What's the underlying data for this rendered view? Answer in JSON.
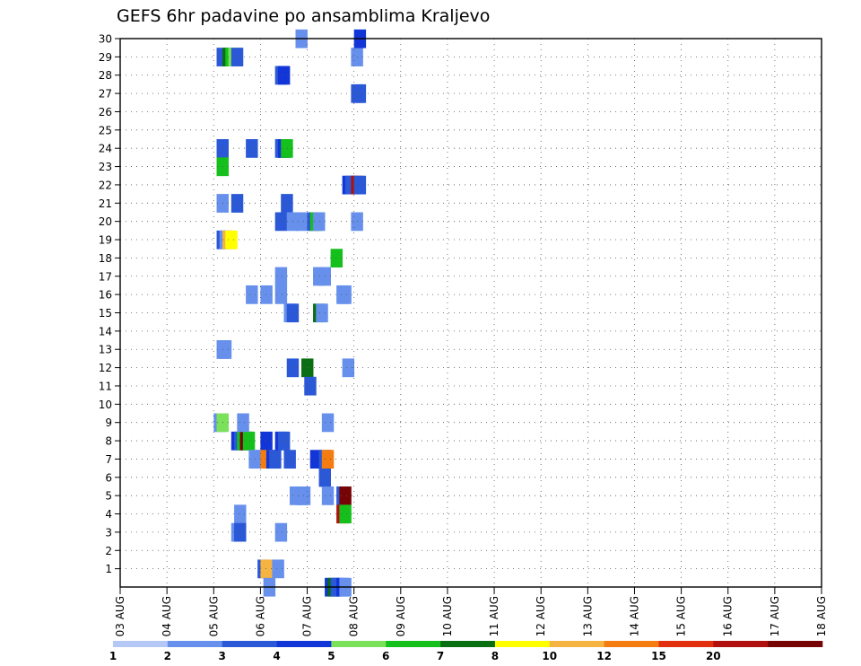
{
  "chart_data": {
    "type": "heatmap",
    "title": "GEFS 6hr padavine po ansamblima Kraljevo",
    "xlabel": "",
    "ylabel": "",
    "x_tick_labels": [
      "03 AUG",
      "04 AUG",
      "05 AUG",
      "06 AUG",
      "07 AUG",
      "08 AUG",
      "09 AUG",
      "10 AUG",
      "11 AUG",
      "12 AUG",
      "13 AUG",
      "14 AUG",
      "15 AUG",
      "16 AUG",
      "17 AUG",
      "18 AUG"
    ],
    "xlim_days": [
      0,
      15
    ],
    "time_step_hours": 6,
    "y_tick_labels": [
      "1",
      "2",
      "3",
      "4",
      "5",
      "6",
      "7",
      "8",
      "9",
      "10",
      "11",
      "12",
      "13",
      "14",
      "15",
      "16",
      "17",
      "18",
      "19",
      "20",
      "21",
      "22",
      "23",
      "24",
      "25",
      "26",
      "27",
      "28",
      "29",
      "30"
    ],
    "ylim": [
      0,
      30
    ],
    "grid": true,
    "colorbar": {
      "labels": [
        "1",
        "2",
        "3",
        "4",
        "5",
        "6",
        "7",
        "8",
        "10",
        "12",
        "15",
        "20"
      ],
      "colors": [
        "#b4c8f5",
        "#6690ec",
        "#2a58d6",
        "#1235d8",
        "#7be05a",
        "#16c01c",
        "#0a6e12",
        "#ffff00",
        "#f5b342",
        "#f47c10",
        "#e2300e",
        "#b0100e",
        "#760404"
      ]
    },
    "cells": [
      {
        "t": 16.5,
        "m": 29,
        "l": 2
      },
      {
        "t": 17.5,
        "m": 29,
        "l": 6
      },
      {
        "t": 18,
        "m": 29,
        "l": 5
      },
      {
        "t": 18.5,
        "m": 29,
        "l": 4
      },
      {
        "t": 19,
        "m": 29,
        "l": 2
      },
      {
        "t": 16.5,
        "m": 24,
        "l": 2
      },
      {
        "t": 16.5,
        "m": 23,
        "l": 5
      },
      {
        "t": 16.5,
        "m": 21,
        "l": 1
      },
      {
        "t": 16.5,
        "m": 19,
        "l": 2
      },
      {
        "t": 17,
        "m": 19,
        "l": 1
      },
      {
        "t": 17.5,
        "m": 19,
        "l": 8
      },
      {
        "t": 18,
        "m": 19,
        "l": 7
      },
      {
        "t": 16.5,
        "m": 13,
        "l": 1
      },
      {
        "t": 17,
        "m": 13,
        "l": 1
      },
      {
        "t": 16,
        "m": 9,
        "l": 1
      },
      {
        "t": 16.5,
        "m": 9,
        "l": 4
      },
      {
        "t": 19,
        "m": 21,
        "l": 2
      },
      {
        "t": 19,
        "m": 8,
        "l": 3
      },
      {
        "t": 19.5,
        "m": 8,
        "l": 2
      },
      {
        "t": 20,
        "m": 8,
        "l": 5
      },
      {
        "t": 20.5,
        "m": 8,
        "l": 12
      },
      {
        "t": 21,
        "m": 8,
        "l": 5
      },
      {
        "t": 20,
        "m": 9,
        "l": 1
      },
      {
        "t": 19.5,
        "m": 4,
        "l": 1
      },
      {
        "t": 19,
        "m": 3,
        "l": 1
      },
      {
        "t": 19.5,
        "m": 3,
        "l": 2
      },
      {
        "t": 21.5,
        "m": 24,
        "l": 2
      },
      {
        "t": 21.5,
        "m": 16,
        "l": 1
      },
      {
        "t": 22,
        "m": 7,
        "l": 1
      },
      {
        "t": 22.5,
        "m": 7,
        "l": 1
      },
      {
        "t": 23.5,
        "m": 1,
        "l": 2
      },
      {
        "t": 24,
        "m": 1,
        "l": 8
      },
      {
        "t": 24,
        "m": 16,
        "l": 1
      },
      {
        "t": 24,
        "m": 8,
        "l": 3
      },
      {
        "t": 24,
        "m": 7,
        "l": 9
      },
      {
        "t": 24.5,
        "m": 0,
        "l": 1
      },
      {
        "t": 25,
        "m": 7,
        "l": 3
      },
      {
        "t": 25.5,
        "m": 7,
        "l": 2
      },
      {
        "t": 26,
        "m": 1,
        "l": 1
      },
      {
        "t": 26.5,
        "m": 28,
        "l": 2
      },
      {
        "t": 27,
        "m": 28,
        "l": 3
      },
      {
        "t": 26.5,
        "m": 24,
        "l": 2
      },
      {
        "t": 27,
        "m": 24,
        "l": 3
      },
      {
        "t": 27.5,
        "m": 24,
        "l": 5
      },
      {
        "t": 26.5,
        "m": 20,
        "l": 2
      },
      {
        "t": 26.5,
        "m": 16,
        "l": 1
      },
      {
        "t": 26.5,
        "m": 17,
        "l": 1
      },
      {
        "t": 26.5,
        "m": 8,
        "l": 3
      },
      {
        "t": 27,
        "m": 8,
        "l": 2
      },
      {
        "t": 26.5,
        "m": 3,
        "l": 1
      },
      {
        "t": 27.5,
        "m": 21,
        "l": 2
      },
      {
        "t": 28,
        "m": 7,
        "l": 2
      },
      {
        "t": 28,
        "m": 15,
        "l": 1
      },
      {
        "t": 28.5,
        "m": 15,
        "l": 2
      },
      {
        "t": 28.5,
        "m": 20,
        "l": 1
      },
      {
        "t": 28.5,
        "m": 12,
        "l": 2
      },
      {
        "t": 29,
        "m": 5,
        "l": 1
      },
      {
        "t": 30,
        "m": 30,
        "l": 1
      },
      {
        "t": 30,
        "m": 20,
        "l": 1
      },
      {
        "t": 30,
        "m": 5,
        "l": 1
      },
      {
        "t": 30.5,
        "m": 5,
        "l": 1
      },
      {
        "t": 31,
        "m": 12,
        "l": 6
      },
      {
        "t": 31.5,
        "m": 11,
        "l": 2
      },
      {
        "t": 32,
        "m": 20,
        "l": 2
      },
      {
        "t": 32.5,
        "m": 20,
        "l": 5
      },
      {
        "t": 33,
        "m": 20,
        "l": 1
      },
      {
        "t": 32.5,
        "m": 7,
        "l": 3
      },
      {
        "t": 33,
        "m": 17,
        "l": 1
      },
      {
        "t": 33,
        "m": 15,
        "l": 6
      },
      {
        "t": 33.5,
        "m": 15,
        "l": 1
      },
      {
        "t": 34,
        "m": 17,
        "l": 1
      },
      {
        "t": 34,
        "m": 7,
        "l": 2
      },
      {
        "t": 34,
        "m": 6,
        "l": 2
      },
      {
        "t": 34.5,
        "m": 7,
        "l": 9
      },
      {
        "t": 34.5,
        "m": 9,
        "l": 1
      },
      {
        "t": 34.5,
        "m": 5,
        "l": 1
      },
      {
        "t": 35,
        "m": 0,
        "l": 3
      },
      {
        "t": 35.5,
        "m": 0,
        "l": 6
      },
      {
        "t": 36,
        "m": 0,
        "l": 2
      },
      {
        "t": 36,
        "m": 18,
        "l": 5
      },
      {
        "t": 37,
        "m": 16,
        "l": 1
      },
      {
        "t": 37.5,
        "m": 16,
        "l": 1
      },
      {
        "t": 37,
        "m": 5,
        "l": 2
      },
      {
        "t": 37.5,
        "m": 5,
        "l": 12
      },
      {
        "t": 37,
        "m": 4,
        "l": 11
      },
      {
        "t": 37.5,
        "m": 4,
        "l": 5
      },
      {
        "t": 37,
        "m": 0,
        "l": 3
      },
      {
        "t": 37.5,
        "m": 0,
        "l": 1
      },
      {
        "t": 38,
        "m": 12,
        "l": 1
      },
      {
        "t": 38,
        "m": 22,
        "l": 3
      },
      {
        "t": 38.5,
        "m": 22,
        "l": 2
      },
      {
        "t": 39.5,
        "m": 29,
        "l": 1
      },
      {
        "t": 39.5,
        "m": 27,
        "l": 2
      },
      {
        "t": 40,
        "m": 27,
        "l": 2
      },
      {
        "t": 39.5,
        "m": 22,
        "l": 11
      },
      {
        "t": 40,
        "m": 22,
        "l": 2
      },
      {
        "t": 39.5,
        "m": 20,
        "l": 1
      },
      {
        "t": 40,
        "m": 30,
        "l": 3
      }
    ]
  }
}
